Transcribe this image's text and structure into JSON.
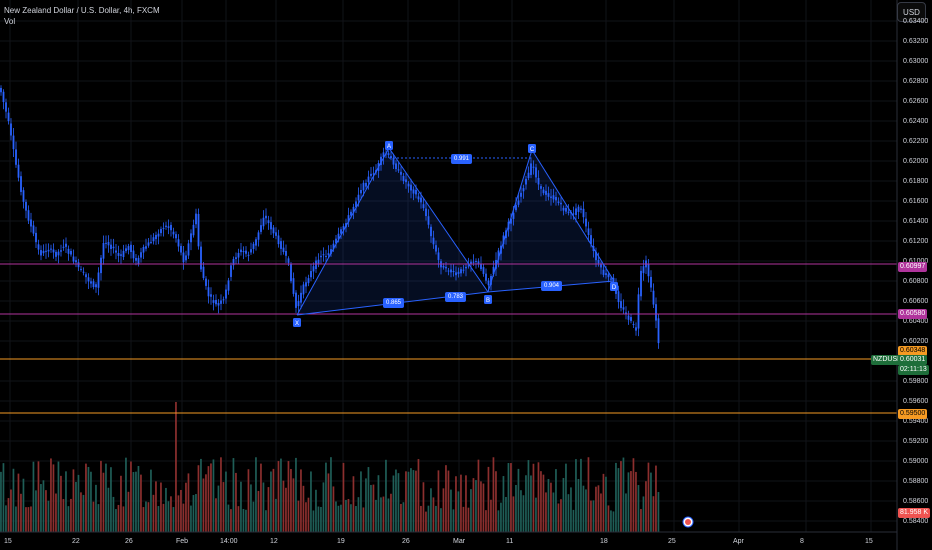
{
  "legend": {
    "title": "New Zealand Dollar / U.S. Dollar, 4h, FXCM",
    "sub": "Vol"
  },
  "currency_button": "USD",
  "y_axis": {
    "labels": [
      "0.63400",
      "0.63200",
      "0.63000",
      "0.62800",
      "0.62600",
      "0.62400",
      "0.62200",
      "0.62000",
      "0.61800",
      "0.61600",
      "0.61400",
      "0.61200",
      "0.61000",
      "0.60800",
      "0.60600",
      "0.60400",
      "0.60200",
      "0.59800",
      "0.59600",
      "0.59400",
      "0.59200",
      "0.59000",
      "0.58800",
      "0.58600",
      "0.58400"
    ]
  },
  "x_axis": {
    "labels": [
      "15",
      "22",
      "26",
      "Feb",
      "14:00",
      "12",
      "19",
      "26",
      "Mar",
      "11",
      "18",
      "25",
      "Apr",
      "8",
      "15"
    ]
  },
  "price_tags": {
    "line1": "0.60997",
    "line2": "0.60580",
    "line3": "0.60348",
    "symbol": "NZDUSD",
    "last_price": "0.60031",
    "countdown": "02:11:13",
    "line4": "0.59500",
    "volume": "81.958 K"
  },
  "pattern": {
    "points": [
      "X",
      "A",
      "B",
      "C",
      "D"
    ],
    "ratios": [
      "0.991",
      "0.865",
      "0.783",
      "0.904"
    ]
  },
  "colors": {
    "up": "#26a69a",
    "down": "#ef5350",
    "wick": "#2962ff",
    "magenta": "#b0349c",
    "orange": "#f59a23",
    "blue": "#2962ff"
  }
}
